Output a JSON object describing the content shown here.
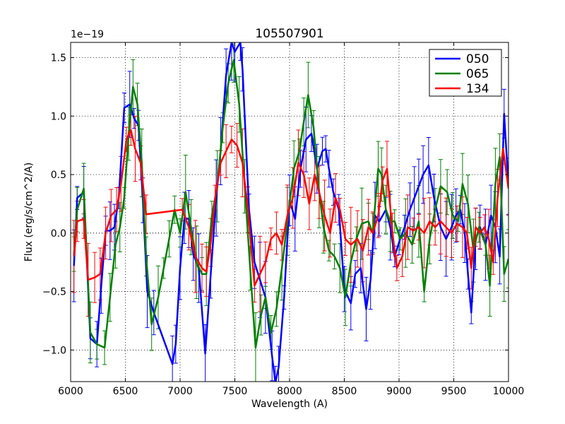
{
  "chart_data": {
    "type": "line",
    "title": "105507901",
    "xlabel": "Wavelength (A)",
    "ylabel": "Flux (erg/s/cm^2/A)",
    "offset_label": "1e−19",
    "xlim": [
      6000,
      10000
    ],
    "ylim": [
      -1.27,
      1.63
    ],
    "xticks": [
      6000,
      6500,
      7000,
      7500,
      8000,
      8500,
      9000,
      9500,
      10000
    ],
    "yticks": [
      -1.0,
      -0.5,
      0.0,
      0.5,
      1.0,
      1.5
    ],
    "xtick_labels": [
      "6000",
      "6500",
      "7000",
      "7500",
      "8000",
      "8500",
      "9000",
      "9500",
      "10000"
    ],
    "ytick_labels": [
      "−1.0",
      "−0.5",
      "0.0",
      "0.5",
      "1.0",
      "1.5"
    ],
    "grid": true,
    "legend_position": "top-right",
    "series": [
      {
        "name": "050",
        "color": "#0000ff",
        "x": [
          6030,
          6060,
          6120,
          6180,
          6240,
          6280,
          6320,
          6360,
          6400,
          6440,
          6490,
          6540,
          6580,
          6620,
          6660,
          6700,
          6760,
          6930,
          6960,
          7000,
          7040,
          7080,
          7120,
          7170,
          7230,
          7280,
          7330,
          7370,
          7420,
          7470,
          7500,
          7550,
          7570,
          7630,
          7680,
          7730,
          7780,
          7840,
          7870,
          7900,
          7950,
          8000,
          8050,
          8100,
          8150,
          8200,
          8250,
          8300,
          8330,
          8360,
          8400,
          8450,
          8500,
          8560,
          8600,
          8650,
          8700,
          8740,
          8780,
          8820,
          8880,
          8920,
          8960,
          9000,
          9050,
          9100,
          9140,
          9180,
          9220,
          9270,
          9320,
          9380,
          9430,
          9480,
          9520,
          9560,
          9600,
          9630,
          9660,
          9700,
          9740,
          9790,
          9840,
          9880,
          9920,
          9960,
          10000
        ],
        "values": [
          -0.28,
          0.3,
          0.35,
          -0.9,
          -0.95,
          -0.45,
          0.02,
          0.02,
          0.05,
          0.3,
          1.07,
          1.1,
          0.98,
          0.92,
          0.28,
          -0.5,
          -0.68,
          -1.12,
          -0.95,
          -0.3,
          0.13,
          0.12,
          -0.18,
          -0.3,
          -1.03,
          -0.35,
          0.3,
          0.7,
          1.35,
          1.63,
          1.55,
          1.63,
          1.4,
          0.2,
          -0.25,
          -0.4,
          -0.55,
          -1.05,
          -1.28,
          -1.15,
          -0.55,
          0.28,
          0.12,
          0.55,
          0.8,
          0.85,
          0.55,
          0.7,
          0.72,
          0.55,
          0.35,
          0.2,
          -0.48,
          -0.6,
          -0.35,
          -0.3,
          -0.65,
          -0.4,
          0.15,
          0.1,
          0.2,
          0.05,
          -0.2,
          -0.08,
          0.05,
          0.2,
          0.3,
          0.4,
          0.5,
          0.58,
          0.3,
          0.05,
          -0.05,
          0.05,
          0.15,
          0.2,
          0.0,
          -0.35,
          -0.68,
          -0.05,
          0.05,
          -0.1,
          0.15,
          0.05,
          -0.2,
          1.02,
          0.4
        ]
      },
      {
        "name": "065",
        "color": "#008000",
        "x": [
          6030,
          6060,
          6120,
          6180,
          6240,
          6310,
          6360,
          6410,
          6450,
          6490,
          6530,
          6570,
          6610,
          6650,
          6690,
          6740,
          6800,
          6850,
          6900,
          6950,
          7000,
          7050,
          7100,
          7150,
          7200,
          7240,
          7290,
          7340,
          7390,
          7440,
          7490,
          7540,
          7590,
          7640,
          7690,
          7740,
          7780,
          7830,
          7880,
          7930,
          7980,
          8040,
          8090,
          8130,
          8170,
          8220,
          8270,
          8310,
          8360,
          8410,
          8460,
          8510,
          8560,
          8610,
          8660,
          8720,
          8760,
          8810,
          8840,
          8880,
          8920,
          8960,
          9010,
          9060,
          9120,
          9180,
          9230,
          9280,
          9330,
          9380,
          9440,
          9490,
          9540,
          9580,
          9630,
          9680,
          9730,
          9790,
          9830,
          9880,
          9920,
          9960,
          10000
        ],
        "values": [
          -0.18,
          0.2,
          0.38,
          -0.85,
          -0.95,
          -0.98,
          -0.55,
          -0.1,
          0.05,
          0.3,
          0.85,
          1.25,
          1.1,
          0.6,
          -0.2,
          -0.78,
          -0.55,
          -0.3,
          -0.05,
          0.2,
          0.0,
          0.35,
          0.05,
          -0.25,
          -0.35,
          -0.35,
          0.15,
          0.4,
          0.9,
          1.28,
          1.48,
          1.1,
          0.4,
          -0.3,
          -0.98,
          -0.7,
          -0.55,
          -0.85,
          -0.65,
          -0.3,
          0.1,
          0.55,
          0.7,
          0.95,
          1.18,
          0.9,
          0.35,
          0.05,
          -0.15,
          -0.2,
          -0.3,
          -0.55,
          -0.25,
          -0.05,
          0.08,
          0.1,
          0.0,
          0.55,
          0.5,
          0.2,
          0.1,
          0.1,
          -0.05,
          0.0,
          -0.1,
          0.1,
          -0.5,
          -0.05,
          0.2,
          0.4,
          0.35,
          0.15,
          0.1,
          0.42,
          0.25,
          -0.15,
          0.05,
          -0.1,
          -0.45,
          0.42,
          0.65,
          -0.35,
          -0.22
        ]
      },
      {
        "name": "134",
        "color": "#ff0000",
        "x": [
          6030,
          6060,
          6120,
          6160,
          6220,
          6270,
          6320,
          6370,
          6420,
          6460,
          6510,
          6550,
          6590,
          6640,
          6690,
          7020,
          7080,
          7140,
          7200,
          7240,
          7280,
          7320,
          7370,
          7420,
          7470,
          7520,
          7570,
          7620,
          7680,
          7730,
          7780,
          7830,
          7880,
          7930,
          7980,
          8030,
          8080,
          8130,
          8180,
          8230,
          8270,
          8320,
          8370,
          8420,
          8460,
          8510,
          8560,
          8620,
          8670,
          8720,
          8760,
          8810,
          8850,
          8890,
          8940,
          8980,
          9030,
          9080,
          9130,
          9180,
          9230,
          9280,
          9330,
          9380,
          9430,
          9480,
          9530,
          9580,
          9620,
          9660,
          9700,
          9740,
          9780,
          9820,
          9860,
          9900,
          9950,
          10000
        ],
        "values": [
          -0.2,
          0.1,
          0.12,
          -0.4,
          -0.38,
          -0.35,
          0.0,
          0.15,
          0.2,
          0.42,
          0.8,
          0.88,
          0.72,
          0.6,
          0.16,
          0.2,
          0.05,
          -0.2,
          -0.3,
          -0.33,
          -0.08,
          0.3,
          0.6,
          0.7,
          0.8,
          0.75,
          0.6,
          0.2,
          -0.45,
          -0.35,
          -0.25,
          -0.05,
          0.0,
          -0.1,
          0.15,
          0.3,
          0.6,
          0.5,
          0.25,
          0.5,
          0.35,
          0.15,
          0.0,
          0.3,
          0.2,
          -0.05,
          -0.1,
          -0.05,
          -0.15,
          0.05,
          0.0,
          0.15,
          0.45,
          0.55,
          0.0,
          -0.3,
          -0.2,
          0.05,
          0.02,
          0.05,
          0.0,
          0.1,
          0.05,
          0.1,
          0.05,
          0.0,
          0.08,
          0.05,
          0.0,
          -0.3,
          0.05,
          0.0,
          0.05,
          -0.05,
          -0.25,
          0.3,
          0.72,
          0.38
        ]
      }
    ]
  }
}
